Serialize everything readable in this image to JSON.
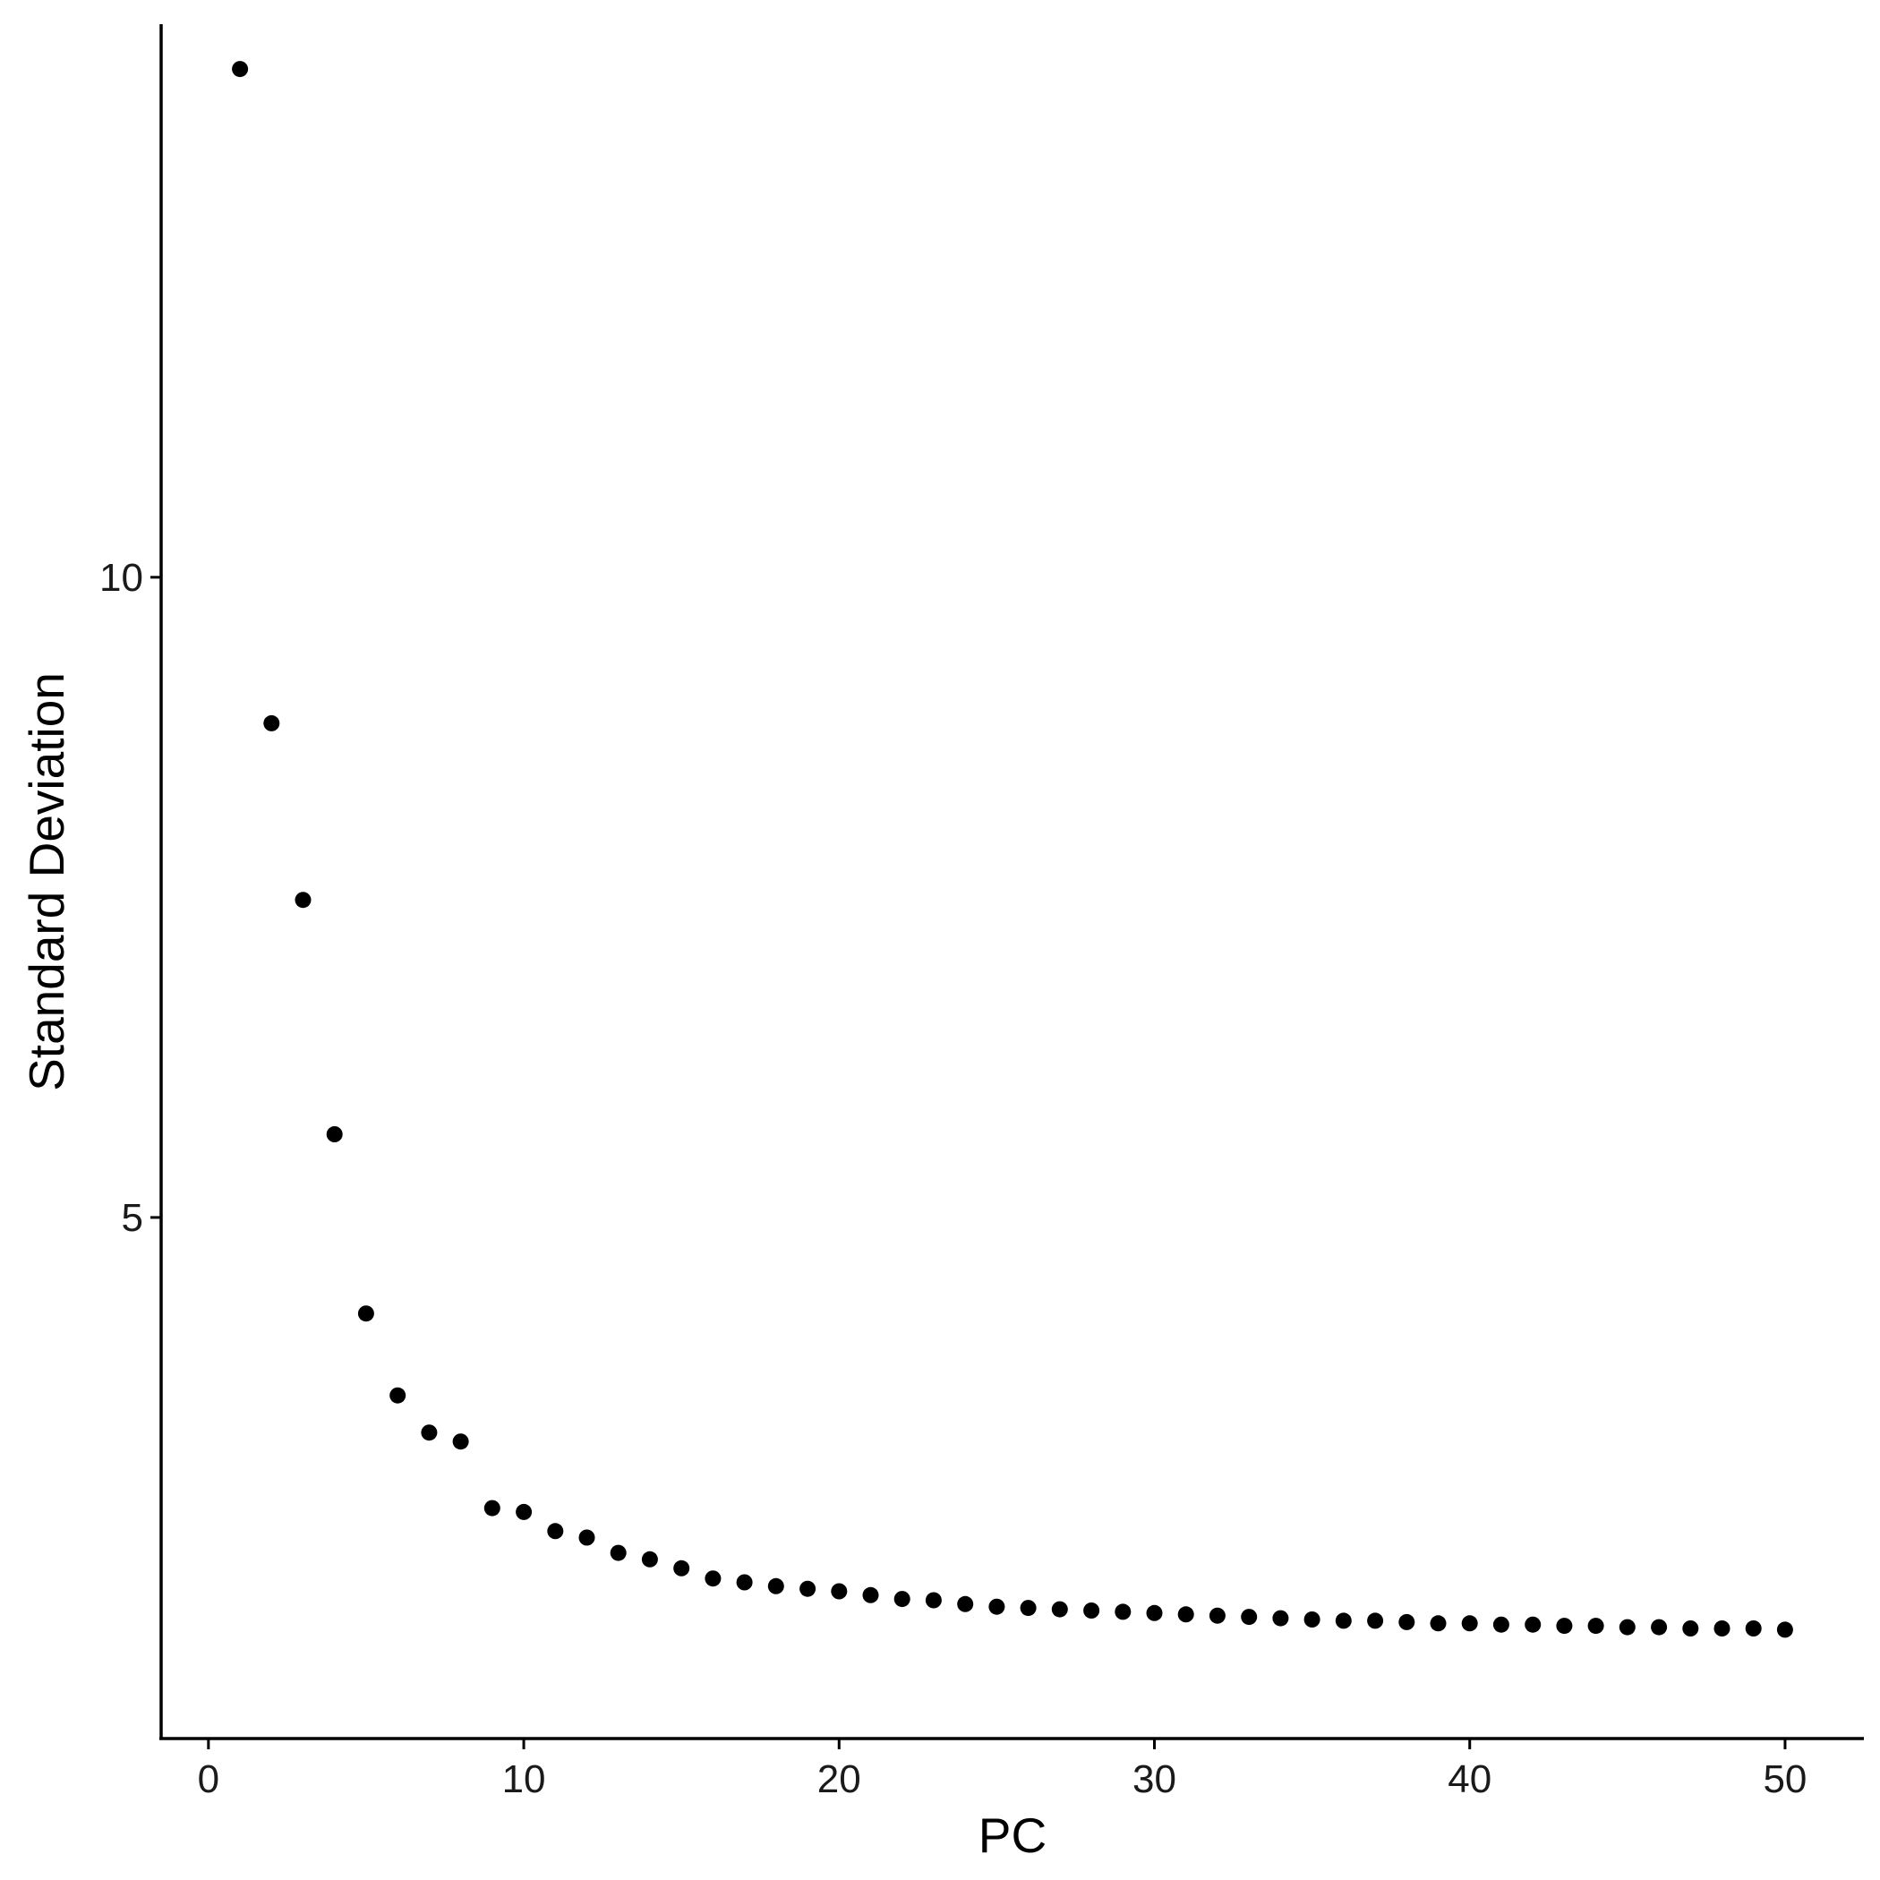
{
  "chart_data": {
    "type": "scatter",
    "title": "",
    "xlabel": "PC",
    "ylabel": "Standard Deviation",
    "xlim": [
      -1.5,
      52.5
    ],
    "ylim": [
      0.93,
      14.32
    ],
    "x_ticks": [
      0,
      10,
      20,
      30,
      40,
      50
    ],
    "x_tick_labels": [
      "0",
      "10",
      "20",
      "30",
      "40",
      "50"
    ],
    "y_ticks": [
      5,
      10
    ],
    "y_tick_labels": [
      "5",
      "10"
    ],
    "grid": false,
    "legend": "none",
    "point_color": "#000000",
    "series": [
      {
        "x": [
          1,
          2,
          3,
          4,
          5,
          6,
          7,
          8,
          9,
          10,
          11,
          12,
          13,
          14,
          15,
          16,
          17,
          18,
          19,
          20,
          21,
          22,
          23,
          24,
          25,
          26,
          27,
          28,
          29,
          30,
          31,
          32,
          33,
          34,
          35,
          36,
          37,
          38,
          39,
          40,
          41,
          42,
          43,
          44,
          45,
          46,
          47,
          48,
          49,
          50
        ],
        "values": [
          13.97,
          8.86,
          7.48,
          5.65,
          4.25,
          3.61,
          3.32,
          3.25,
          2.73,
          2.7,
          2.55,
          2.5,
          2.38,
          2.33,
          2.26,
          2.18,
          2.15,
          2.12,
          2.1,
          2.08,
          2.05,
          2.02,
          2.01,
          1.98,
          1.96,
          1.95,
          1.94,
          1.93,
          1.92,
          1.91,
          1.9,
          1.89,
          1.88,
          1.87,
          1.86,
          1.85,
          1.85,
          1.84,
          1.83,
          1.83,
          1.82,
          1.82,
          1.81,
          1.81,
          1.8,
          1.8,
          1.79,
          1.79,
          1.79,
          1.78
        ]
      }
    ]
  }
}
